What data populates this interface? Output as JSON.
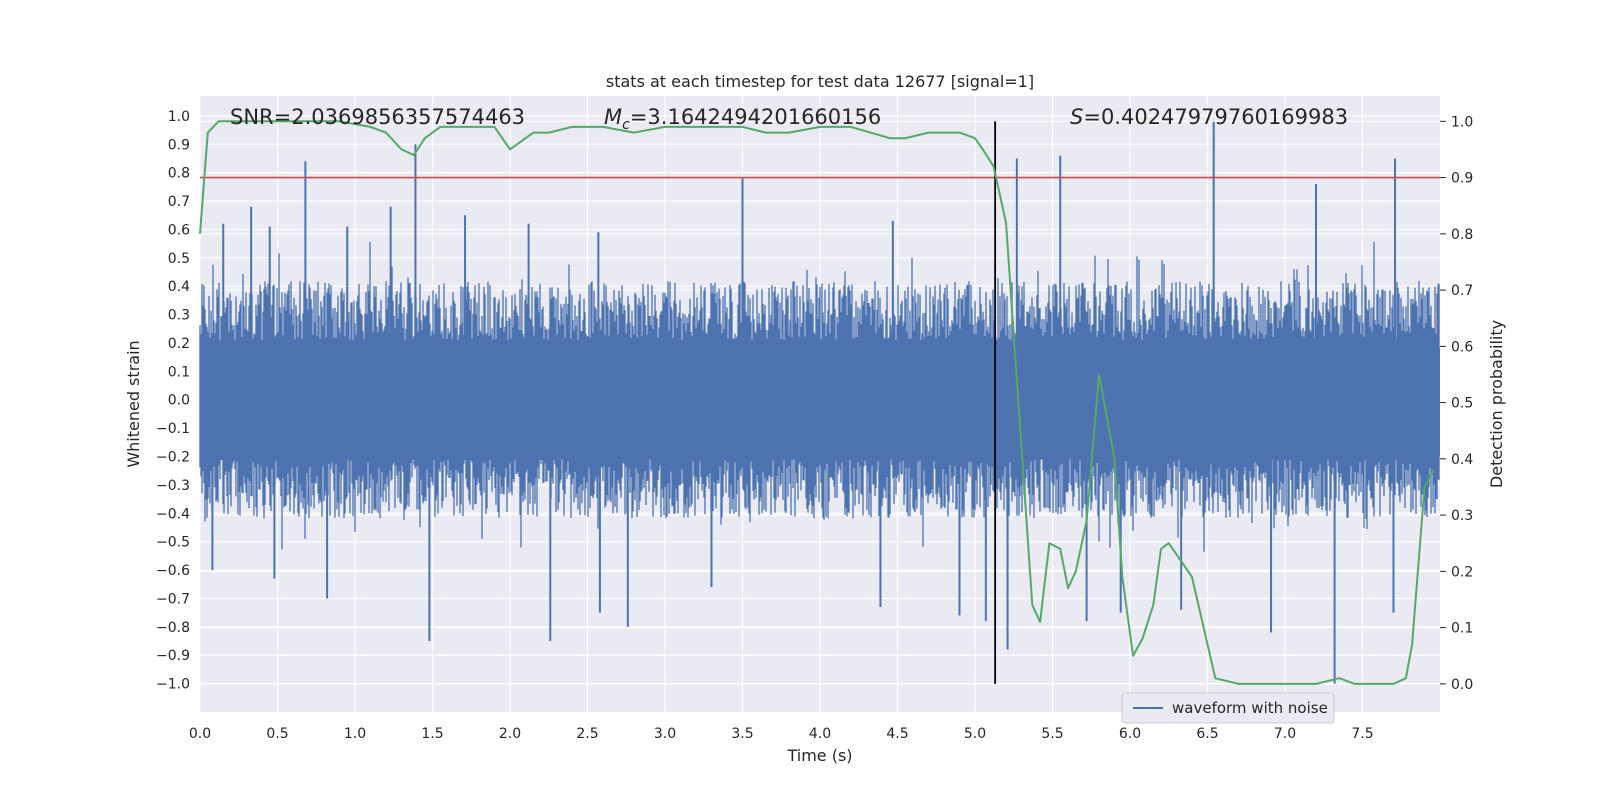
{
  "chart_data": {
    "type": "line",
    "title": "stats at each timestep for test data 12677 [signal=1]",
    "xlabel": "Time (s)",
    "ylabel": "Whitened strain",
    "y2label": "Detection probability",
    "xlim": [
      0,
      8
    ],
    "ylim": [
      -1.1,
      1.07
    ],
    "y2lim": [
      -0.05,
      1.045
    ],
    "xticks": [
      0.0,
      0.5,
      1.0,
      1.5,
      2.0,
      2.5,
      3.0,
      3.5,
      4.0,
      4.5,
      5.0,
      5.5,
      6.0,
      6.5,
      7.0,
      7.5
    ],
    "yticks": [
      1.0,
      0.9,
      0.8,
      0.7,
      0.6,
      0.5,
      0.4,
      0.3,
      0.2,
      0.1,
      0.0,
      -0.1,
      -0.2,
      -0.3,
      -0.4,
      -0.5,
      -0.6,
      -0.7,
      -0.8,
      -0.9,
      -1.0
    ],
    "y2ticks": [
      1.0,
      0.9,
      0.8,
      0.7,
      0.6,
      0.5,
      0.4,
      0.3,
      0.2,
      0.1,
      0.0
    ],
    "grid": true,
    "legend": {
      "placement": "lower-right",
      "entries": [
        "waveform with noise"
      ]
    },
    "annotations": {
      "snr": "SNR=2.0369856357574463",
      "mc_symbol": "M",
      "mc_sub": "c",
      "mc_value": "=3.1642494201660156",
      "s_symbol": "S",
      "s_value": "=0.40247979760169983"
    },
    "threshold": {
      "axis": "right",
      "value": 0.9
    },
    "marker_time": 5.13,
    "waveform": {
      "name": "waveform with noise",
      "band_min": -0.38,
      "band_max": 0.38,
      "spikes": [
        [
          0.15,
          0.62
        ],
        [
          0.33,
          0.68
        ],
        [
          0.45,
          0.61
        ],
        [
          0.68,
          0.84
        ],
        [
          0.95,
          0.61
        ],
        [
          1.23,
          0.68
        ],
        [
          1.39,
          0.9
        ],
        [
          1.71,
          0.65
        ],
        [
          2.12,
          0.62
        ],
        [
          2.57,
          0.59
        ],
        [
          3.5,
          0.78
        ],
        [
          4.47,
          0.63
        ],
        [
          5.27,
          0.85
        ],
        [
          5.55,
          0.86
        ],
        [
          6.54,
          0.98
        ],
        [
          7.2,
          0.76
        ],
        [
          7.71,
          0.85
        ],
        [
          0.08,
          -0.6
        ],
        [
          0.48,
          -0.63
        ],
        [
          0.82,
          -0.7
        ],
        [
          1.48,
          -0.85
        ],
        [
          2.26,
          -0.85
        ],
        [
          2.58,
          -0.75
        ],
        [
          2.76,
          -0.8
        ],
        [
          3.3,
          -0.66
        ],
        [
          4.39,
          -0.73
        ],
        [
          4.9,
          -0.76
        ],
        [
          5.07,
          -0.78
        ],
        [
          5.21,
          -0.88
        ],
        [
          5.72,
          -0.78
        ],
        [
          5.94,
          -0.75
        ],
        [
          6.33,
          -0.74
        ],
        [
          6.91,
          -0.82
        ],
        [
          7.32,
          -1.0
        ],
        [
          7.7,
          -0.75
        ]
      ],
      "color": "#4c72b0"
    },
    "probability": {
      "color": "#55a868",
      "x": [
        0.0,
        0.05,
        0.12,
        0.3,
        0.6,
        0.9,
        1.1,
        1.2,
        1.3,
        1.38,
        1.45,
        1.55,
        1.7,
        1.9,
        2.0,
        2.05,
        2.15,
        2.25,
        2.4,
        2.6,
        2.8,
        3.0,
        3.3,
        3.5,
        3.65,
        3.8,
        4.0,
        4.2,
        4.45,
        4.55,
        4.7,
        4.9,
        5.0,
        5.05,
        5.12,
        5.2,
        5.3,
        5.37,
        5.42,
        5.48,
        5.55,
        5.6,
        5.65,
        5.72,
        5.8,
        5.9,
        5.95,
        6.02,
        6.08,
        6.15,
        6.2,
        6.25,
        6.4,
        6.55,
        6.7,
        6.85,
        7.0,
        7.2,
        7.35,
        7.45,
        7.6,
        7.7,
        7.78,
        7.82,
        7.9,
        7.96
      ],
      "y": [
        0.8,
        0.98,
        1.0,
        1.0,
        1.0,
        1.0,
        0.99,
        0.98,
        0.95,
        0.94,
        0.97,
        0.99,
        0.99,
        0.99,
        0.95,
        0.96,
        0.98,
        0.98,
        0.99,
        0.99,
        0.98,
        0.99,
        0.99,
        0.99,
        0.98,
        0.98,
        0.99,
        0.99,
        0.97,
        0.97,
        0.98,
        0.98,
        0.97,
        0.95,
        0.92,
        0.82,
        0.42,
        0.14,
        0.11,
        0.25,
        0.24,
        0.17,
        0.2,
        0.29,
        0.55,
        0.4,
        0.19,
        0.05,
        0.08,
        0.14,
        0.24,
        0.25,
        0.19,
        0.01,
        0.0,
        0.0,
        0.0,
        0.0,
        0.01,
        0.0,
        0.0,
        0.0,
        0.01,
        0.07,
        0.35,
        0.38
      ]
    }
  }
}
